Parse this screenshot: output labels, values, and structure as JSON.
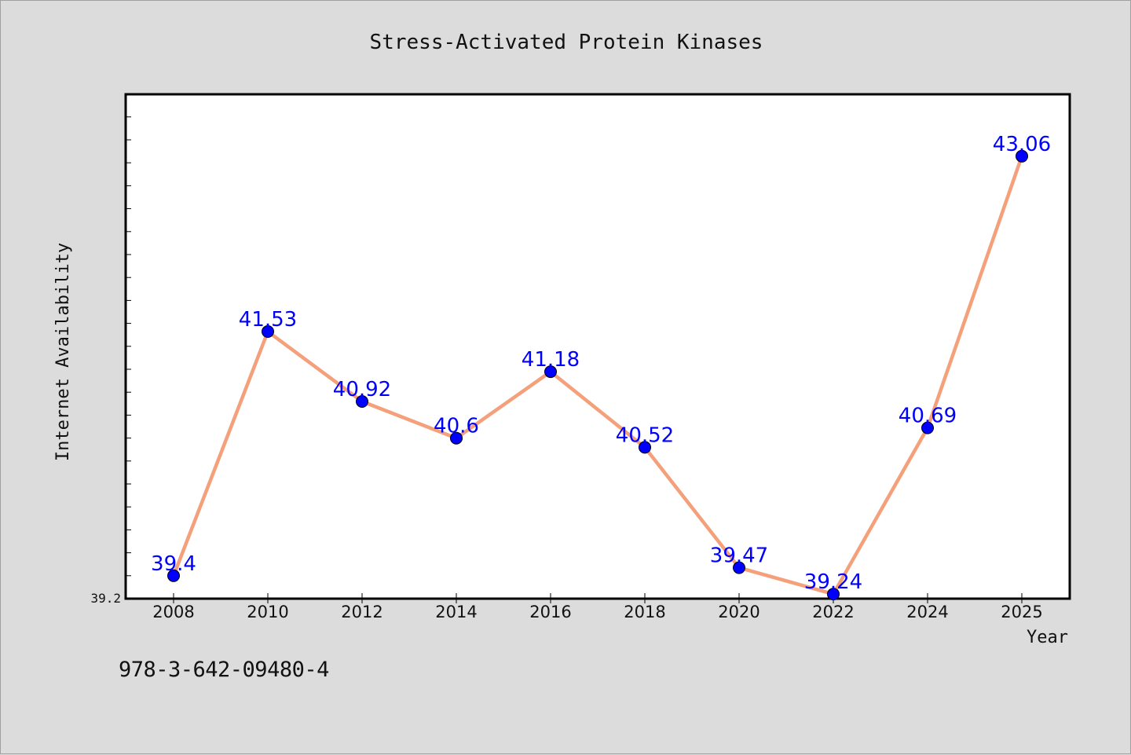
{
  "footer_text": "978-3-642-09480-4",
  "chart_data": {
    "type": "line",
    "title": "Stress-Activated Protein Kinases",
    "xlabel": "Year",
    "ylabel": "Internet Availability",
    "categories": [
      "2008",
      "2010",
      "2012",
      "2014",
      "2016",
      "2018",
      "2020",
      "2022",
      "2024",
      "2025"
    ],
    "series": [
      {
        "values": [
          39.4,
          41.53,
          40.92,
          40.6,
          41.18,
          40.52,
          39.47,
          39.24,
          40.69,
          43.06
        ],
        "labels": [
          "39.4",
          "41.53",
          "40.92",
          "40.6",
          "41.18",
          "40.52",
          "39.47",
          "39.24",
          "40.69",
          "43.06"
        ],
        "line_color": "#f4a07a",
        "marker_color": "#0000ff",
        "label_color": "#0000ff"
      }
    ],
    "ylim": [
      39.2,
      43.6
    ],
    "y_tick_labels": [
      "39.2"
    ],
    "grid": false,
    "background": "#ffffff"
  }
}
